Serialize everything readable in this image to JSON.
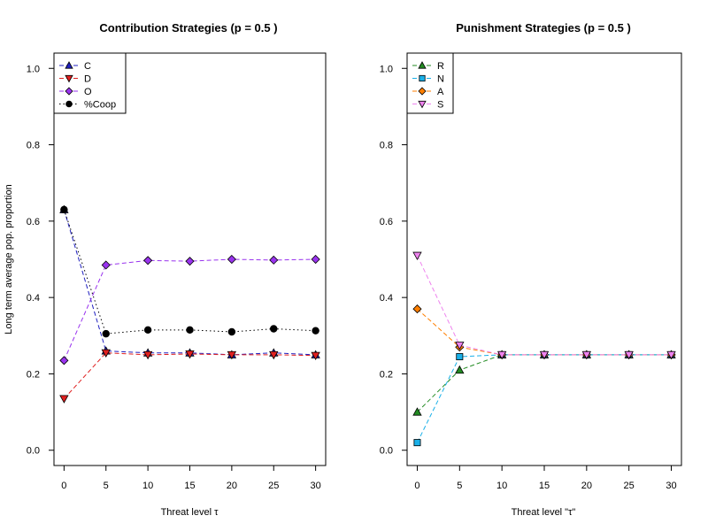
{
  "ylabel": "Long term average pop. proportion",
  "chart_data": [
    {
      "type": "line",
      "title": "Contribution Strategies (p = 0.5 )",
      "xlabel": "Threat level τ",
      "ylabel": "Long term average pop. proportion",
      "x": [
        0,
        5,
        10,
        15,
        20,
        25,
        30
      ],
      "xlim": [
        -1.2,
        31.2
      ],
      "ylim": [
        -0.04,
        1.04
      ],
      "xticks": [
        "0",
        "5",
        "10",
        "15",
        "20",
        "25",
        "30"
      ],
      "yticks": [
        "0.0",
        "0.2",
        "0.4",
        "0.6",
        "0.8",
        "1.0"
      ],
      "legend_position": "top-left",
      "series": [
        {
          "name": "C",
          "marker": "triangle-up",
          "color": "#2020c0",
          "line": "dashed",
          "values": [
            0.63,
            0.26,
            0.255,
            0.255,
            0.25,
            0.255,
            0.25
          ]
        },
        {
          "name": "D",
          "marker": "triangle-down",
          "color": "#e02020",
          "line": "dashed",
          "values": [
            0.135,
            0.255,
            0.25,
            0.252,
            0.25,
            0.25,
            0.248
          ]
        },
        {
          "name": "O",
          "marker": "diamond",
          "color": "#9933ee",
          "line": "dashed",
          "values": [
            0.235,
            0.485,
            0.497,
            0.495,
            0.5,
            0.498,
            0.5
          ]
        },
        {
          "name": "%Coop",
          "marker": "circle",
          "color": "#000000",
          "line": "dotted",
          "values": [
            0.63,
            0.305,
            0.315,
            0.315,
            0.31,
            0.318,
            0.313
          ]
        }
      ]
    },
    {
      "type": "line",
      "title": "Punishment Strategies (p = 0.5 )",
      "xlabel": "Threat level \"τ\"",
      "ylabel": "",
      "x": [
        0,
        5,
        10,
        15,
        20,
        25,
        30
      ],
      "xlim": [
        -1.2,
        31.2
      ],
      "ylim": [
        -0.04,
        1.04
      ],
      "xticks": [
        "0",
        "5",
        "10",
        "15",
        "20",
        "25",
        "30"
      ],
      "yticks": [
        "0.0",
        "0.2",
        "0.4",
        "0.6",
        "0.8",
        "1.0"
      ],
      "legend_position": "top-left",
      "series": [
        {
          "name": "R",
          "marker": "triangle-up",
          "color": "#228b22",
          "line": "dashed",
          "values": [
            0.1,
            0.21,
            0.25,
            0.25,
            0.25,
            0.25,
            0.25
          ]
        },
        {
          "name": "N",
          "marker": "square",
          "color": "#1ab0e8",
          "line": "dashed",
          "values": [
            0.02,
            0.245,
            0.25,
            0.25,
            0.25,
            0.25,
            0.25
          ]
        },
        {
          "name": "A",
          "marker": "diamond",
          "color": "#ff7f00",
          "line": "dashed",
          "values": [
            0.37,
            0.27,
            0.25,
            0.25,
            0.25,
            0.25,
            0.25
          ]
        },
        {
          "name": "S",
          "marker": "triangle-down",
          "color": "#ee82ee",
          "line": "dashed",
          "values": [
            0.51,
            0.275,
            0.25,
            0.25,
            0.25,
            0.25,
            0.25
          ]
        }
      ]
    }
  ]
}
